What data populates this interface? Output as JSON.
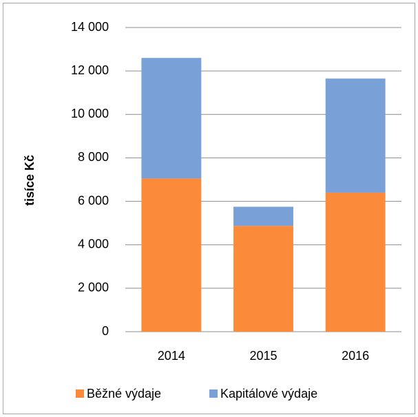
{
  "chart_data": {
    "type": "stacked_bar",
    "ylabel": "tisíce Kč",
    "categories": [
      "2014",
      "2015",
      "2016"
    ],
    "series": [
      {
        "name": "Běžné výdaje",
        "color": "#fc8a3b",
        "values": [
          7050,
          4870,
          6400
        ]
      },
      {
        "name": "Kapitálové výdaje",
        "color": "#7aa0d8",
        "values": [
          5550,
          880,
          5250
        ]
      }
    ],
    "ylim": [
      0,
      14000
    ],
    "yticks": [
      0,
      {
        "value": 2000,
        "label": "2 000"
      },
      {
        "value": 4000,
        "label": "4 000"
      },
      {
        "value": 6000,
        "label": "6 000"
      },
      {
        "value": 8000,
        "label": "8 000"
      },
      {
        "value": 10000,
        "label": "10 000"
      },
      {
        "value": 12000,
        "label": "12 000"
      },
      {
        "value": 14000,
        "label": "14 000"
      }
    ],
    "grid": true
  }
}
